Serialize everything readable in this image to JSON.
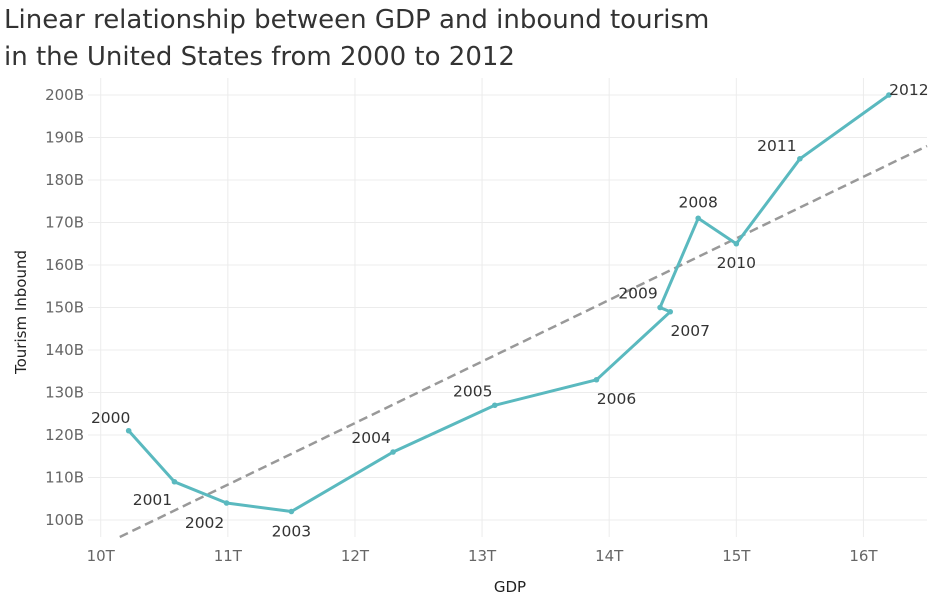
{
  "title_lines": [
    "Linear relationship between GDP and inbound tourism",
    "in the United States from 2000 to 2012"
  ],
  "colors": {
    "series": "#5ab9bf",
    "trend": "#999999",
    "grid": "#ececec"
  },
  "chart_data": {
    "type": "line",
    "title": "Linear relationship between GDP and inbound tourism in the United States from 2000 to 2012",
    "xlabel": "GDP",
    "ylabel": "Tourism Inbound",
    "xlim": [
      9.9,
      16.5
    ],
    "ylim": [
      96,
      204
    ],
    "x_ticks": [
      10,
      11,
      12,
      13,
      14,
      15,
      16
    ],
    "x_tick_labels": [
      "10T",
      "11T",
      "12T",
      "13T",
      "14T",
      "15T",
      "16T"
    ],
    "y_ticks": [
      100,
      110,
      120,
      130,
      140,
      150,
      160,
      170,
      180,
      190,
      200
    ],
    "y_tick_labels": [
      "100B",
      "110B",
      "120B",
      "130B",
      "140B",
      "150B",
      "160B",
      "170B",
      "180B",
      "190B",
      "200B"
    ],
    "grid": true,
    "points": [
      {
        "year": "2000",
        "x": 10.22,
        "y": 121
      },
      {
        "year": "2001",
        "x": 10.58,
        "y": 109
      },
      {
        "year": "2002",
        "x": 10.99,
        "y": 104
      },
      {
        "year": "2003",
        "x": 11.5,
        "y": 102
      },
      {
        "year": "2004",
        "x": 12.3,
        "y": 116
      },
      {
        "year": "2005",
        "x": 13.1,
        "y": 127
      },
      {
        "year": "2006",
        "x": 13.9,
        "y": 133
      },
      {
        "year": "2007",
        "x": 14.48,
        "y": 149
      },
      {
        "year": "2009",
        "x": 14.4,
        "y": 150
      },
      {
        "year": "2008",
        "x": 14.7,
        "y": 171
      },
      {
        "year": "2010",
        "x": 15.0,
        "y": 165
      },
      {
        "year": "2011",
        "x": 15.5,
        "y": 185
      },
      {
        "year": "2012",
        "x": 16.2,
        "y": 200
      }
    ],
    "trendline": {
      "x": [
        10.15,
        16.5
      ],
      "y": [
        96,
        188
      ]
    }
  }
}
